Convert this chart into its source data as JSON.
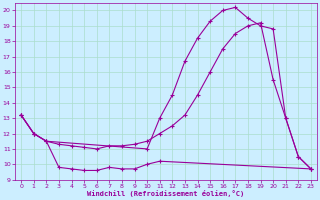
{
  "bg_color": "#cceeff",
  "grid_color": "#aaddcc",
  "line_color": "#990099",
  "marker": "+",
  "xlabel": "Windchill (Refroidissement éolien,°C)",
  "xlabel_color": "#990099",
  "tick_color": "#990099",
  "xlim": [
    -0.5,
    23.5
  ],
  "ylim": [
    9,
    20.5
  ],
  "yticks": [
    9,
    10,
    11,
    12,
    13,
    14,
    15,
    16,
    17,
    18,
    19,
    20
  ],
  "xticks": [
    0,
    1,
    2,
    3,
    4,
    5,
    6,
    7,
    8,
    9,
    10,
    11,
    12,
    13,
    14,
    15,
    16,
    17,
    18,
    19,
    20,
    21,
    22,
    23
  ],
  "series1_x": [
    0,
    1,
    2,
    3,
    4,
    5,
    6,
    7,
    8,
    9,
    10,
    11,
    23
  ],
  "series1_y": [
    13.2,
    12.0,
    11.5,
    9.8,
    9.7,
    9.6,
    9.6,
    9.8,
    9.7,
    9.7,
    10.0,
    10.2,
    9.7
  ],
  "series2_x": [
    0,
    1,
    2,
    3,
    4,
    5,
    6,
    7,
    8,
    9,
    10,
    11,
    12,
    13,
    14,
    15,
    16,
    17,
    18,
    19,
    20,
    21,
    22,
    23
  ],
  "series2_y": [
    13.2,
    12.0,
    11.5,
    11.3,
    11.2,
    11.1,
    11.0,
    11.2,
    11.2,
    11.3,
    11.5,
    12.0,
    12.5,
    13.2,
    14.5,
    16.0,
    17.5,
    18.5,
    19.0,
    19.2,
    15.5,
    13.0,
    10.5,
    9.7
  ],
  "series3_x": [
    0,
    1,
    2,
    10,
    11,
    12,
    13,
    14,
    15,
    16,
    17,
    18,
    19,
    20,
    21,
    22,
    23
  ],
  "series3_y": [
    13.2,
    12.0,
    11.5,
    11.0,
    13.0,
    14.5,
    16.7,
    18.2,
    19.3,
    20.0,
    20.2,
    19.5,
    19.0,
    18.8,
    13.0,
    10.5,
    9.7
  ]
}
